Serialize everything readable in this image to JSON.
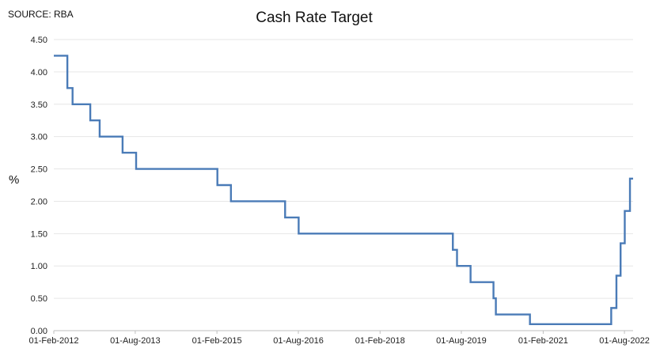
{
  "source_label": "SOURCE: RBA",
  "chart_data": {
    "type": "line",
    "title": "Cash Rate Target",
    "xlabel": "",
    "ylabel": "%",
    "ylim": [
      0,
      4.5
    ],
    "yticks": [
      "0.00",
      "0.50",
      "1.00",
      "1.50",
      "2.00",
      "2.50",
      "3.00",
      "3.50",
      "4.00",
      "4.50"
    ],
    "xlim": [
      "2012-02-01",
      "2022-09-28"
    ],
    "xtick_labels": [
      {
        "date": "2012-02-01",
        "label": "01-Feb-2012"
      },
      {
        "date": "2013-08-01",
        "label": "01-Aug-2013"
      },
      {
        "date": "2015-02-01",
        "label": "01-Feb-2015"
      },
      {
        "date": "2016-08-01",
        "label": "01-Aug-2016"
      },
      {
        "date": "2018-02-01",
        "label": "01-Feb-2018"
      },
      {
        "date": "2019-08-01",
        "label": "01-Aug-2019"
      },
      {
        "date": "2021-02-01",
        "label": "01-Feb-2021"
      },
      {
        "date": "2022-08-01",
        "label": "01-Aug-2022"
      }
    ],
    "grid": true,
    "line_color": "#4a7bb7",
    "series": [
      {
        "name": "",
        "step": true,
        "points": [
          [
            "2012-02-01",
            4.25
          ],
          [
            "2012-05-02",
            3.75
          ],
          [
            "2012-06-06",
            3.5
          ],
          [
            "2012-10-03",
            3.25
          ],
          [
            "2012-12-05",
            3.0
          ],
          [
            "2013-05-08",
            2.75
          ],
          [
            "2013-08-07",
            2.5
          ],
          [
            "2015-02-04",
            2.25
          ],
          [
            "2015-05-06",
            2.0
          ],
          [
            "2016-05-04",
            1.75
          ],
          [
            "2016-08-03",
            1.5
          ],
          [
            "2019-06-05",
            1.25
          ],
          [
            "2019-07-03",
            1.0
          ],
          [
            "2019-10-02",
            0.75
          ],
          [
            "2020-03-04",
            0.5
          ],
          [
            "2020-03-20",
            0.25
          ],
          [
            "2020-11-04",
            0.1
          ],
          [
            "2022-05-04",
            0.35
          ],
          [
            "2022-06-08",
            0.85
          ],
          [
            "2022-07-06",
            1.35
          ],
          [
            "2022-08-03",
            1.85
          ],
          [
            "2022-09-07",
            2.35
          ],
          [
            "2022-09-28",
            2.35
          ]
        ]
      }
    ]
  }
}
